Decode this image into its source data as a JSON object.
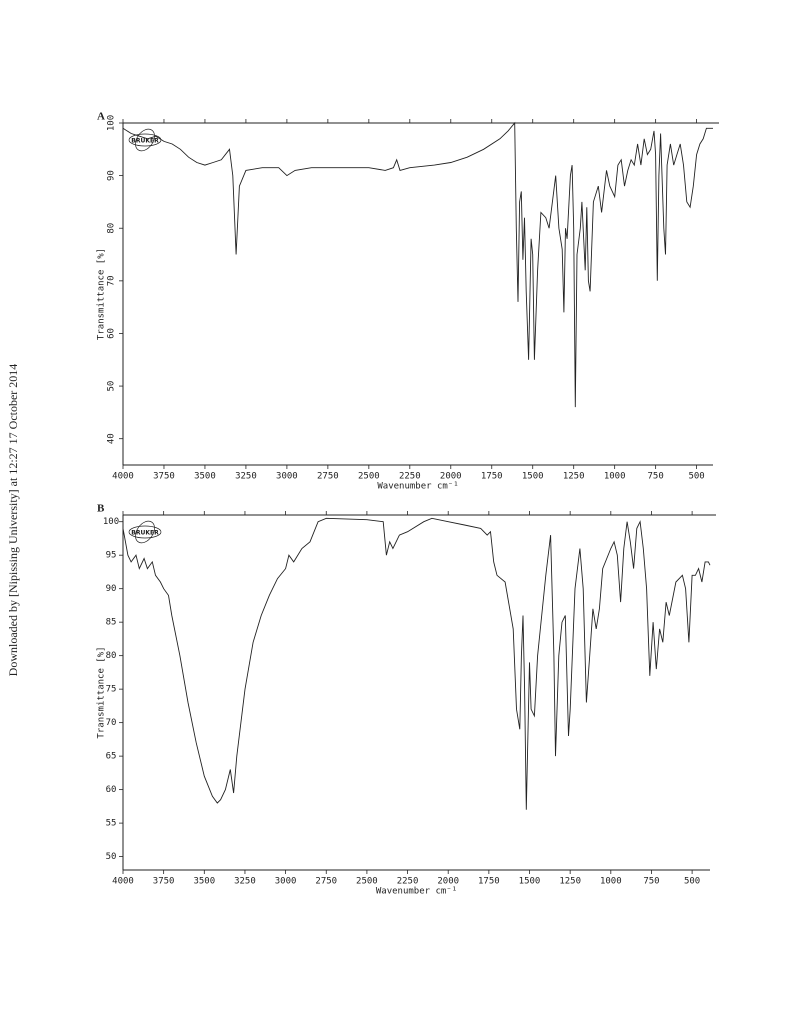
{
  "side_note": "Downloaded by [Nipissing University] at 12:27 17 October 2014",
  "chart_data": [
    {
      "type": "line",
      "panel_label": "A",
      "logo": "BRUKER",
      "x_label": "Wavenumber cm⁻¹",
      "y_label": "Transmittance [%]",
      "xlim": [
        4000,
        400
      ],
      "ylim": [
        35,
        100
      ],
      "xticks": [
        4000,
        3750,
        3500,
        3250,
        3000,
        2750,
        2500,
        2250,
        2000,
        1750,
        1500,
        1250,
        1000,
        750,
        500
      ],
      "yticks": [
        40,
        50,
        60,
        70,
        80,
        90,
        100
      ],
      "color": "#222222",
      "x": [
        4000,
        3950,
        3900,
        3850,
        3800,
        3750,
        3700,
        3650,
        3600,
        3550,
        3500,
        3450,
        3400,
        3350,
        3330,
        3310,
        3290,
        3250,
        3150,
        3050,
        3000,
        2950,
        2850,
        2750,
        2500,
        2400,
        2350,
        2330,
        2310,
        2250,
        2100,
        2000,
        1900,
        1800,
        1700,
        1650,
        1610,
        1600,
        1590,
        1580,
        1570,
        1560,
        1550,
        1540,
        1525,
        1510,
        1500,
        1490,
        1470,
        1450,
        1420,
        1400,
        1380,
        1360,
        1340,
        1320,
        1310,
        1300,
        1290,
        1270,
        1260,
        1250,
        1240,
        1230,
        1210,
        1200,
        1180,
        1170,
        1160,
        1150,
        1130,
        1100,
        1080,
        1050,
        1030,
        1000,
        980,
        960,
        940,
        920,
        900,
        880,
        860,
        840,
        820,
        800,
        780,
        760,
        750,
        740,
        730,
        720,
        700,
        690,
        680,
        660,
        640,
        620,
        600,
        580,
        560,
        540,
        520,
        500,
        480,
        460,
        440,
        420,
        400
      ],
      "values": [
        99,
        98,
        97.5,
        97,
        97.5,
        96.5,
        96,
        95,
        93.5,
        92.5,
        92,
        92.5,
        93,
        95,
        90,
        75,
        88,
        91,
        91.5,
        91.5,
        90,
        91,
        91.5,
        91.5,
        91.5,
        91,
        91.5,
        93,
        91,
        91.5,
        92,
        92.5,
        93.5,
        95,
        97,
        98.5,
        100,
        80,
        66,
        85,
        87,
        74,
        82,
        68,
        55,
        78,
        75,
        55,
        72,
        83,
        82,
        80,
        85,
        90,
        80,
        76,
        64,
        80,
        78,
        90,
        92,
        80,
        46,
        75,
        80,
        85,
        72,
        84,
        70,
        68,
        85,
        88,
        83,
        91,
        88,
        86,
        92,
        93,
        88,
        91,
        93,
        92,
        96,
        92,
        97,
        94,
        95,
        98.5,
        94,
        70,
        90,
        98,
        80,
        75,
        92,
        96,
        92,
        94,
        96,
        92,
        85,
        84,
        88,
        94,
        96,
        97,
        99,
        99,
        99
      ]
    },
    {
      "type": "line",
      "panel_label": "B",
      "logo": "BRUKER",
      "x_label": "Wavenumber cm⁻¹",
      "y_label": "Transmittance [%]",
      "xlim": [
        4000,
        390
      ],
      "ylim": [
        48,
        101
      ],
      "xticks": [
        4000,
        3750,
        3500,
        3250,
        3000,
        2750,
        2500,
        2250,
        2000,
        1750,
        1500,
        1250,
        1000,
        750,
        500
      ],
      "yticks": [
        50,
        55,
        60,
        65,
        70,
        75,
        80,
        85,
        90,
        95,
        100
      ],
      "color": "#222222",
      "x": [
        4000,
        3970,
        3950,
        3920,
        3900,
        3870,
        3850,
        3820,
        3800,
        3770,
        3750,
        3720,
        3700,
        3650,
        3600,
        3550,
        3500,
        3450,
        3420,
        3400,
        3370,
        3340,
        3320,
        3300,
        3250,
        3200,
        3150,
        3100,
        3050,
        3000,
        2980,
        2950,
        2900,
        2850,
        2800,
        2750,
        2500,
        2400,
        2380,
        2360,
        2340,
        2300,
        2250,
        2150,
        2100,
        2000,
        1900,
        1800,
        1760,
        1740,
        1720,
        1700,
        1650,
        1600,
        1580,
        1560,
        1550,
        1540,
        1530,
        1520,
        1510,
        1500,
        1490,
        1470,
        1450,
        1400,
        1370,
        1350,
        1340,
        1320,
        1300,
        1280,
        1260,
        1250,
        1220,
        1190,
        1170,
        1150,
        1130,
        1110,
        1090,
        1070,
        1050,
        1000,
        980,
        960,
        940,
        920,
        900,
        880,
        860,
        840,
        820,
        800,
        780,
        760,
        740,
        720,
        700,
        680,
        660,
        640,
        600,
        560,
        540,
        520,
        500,
        480,
        460,
        440,
        420,
        400,
        390
      ],
      "values": [
        99,
        95,
        94,
        95,
        93,
        94.5,
        93,
        94,
        92,
        91,
        90,
        89,
        86,
        80,
        73,
        67,
        62,
        59,
        58,
        58.5,
        60,
        63,
        59.5,
        65,
        75,
        82,
        86,
        89,
        91.5,
        93,
        95,
        94,
        96,
        97,
        100,
        100.5,
        100.3,
        100,
        95,
        97,
        96,
        98,
        98.5,
        100,
        100.5,
        100,
        99.5,
        99,
        98,
        98.5,
        94,
        92,
        91,
        84,
        72,
        69,
        80,
        86,
        75,
        57,
        68,
        79,
        72,
        71,
        80,
        92,
        98,
        80,
        65,
        80,
        85,
        86,
        68,
        72,
        90,
        96,
        90,
        73,
        80,
        87,
        84,
        87,
        93,
        96,
        97,
        95,
        88,
        96,
        100,
        97,
        93,
        99,
        100,
        96,
        90,
        77,
        85,
        78,
        84,
        82,
        88,
        86,
        91,
        92,
        90,
        82,
        92,
        92,
        93,
        91,
        94,
        94,
        93.5
      ]
    }
  ]
}
